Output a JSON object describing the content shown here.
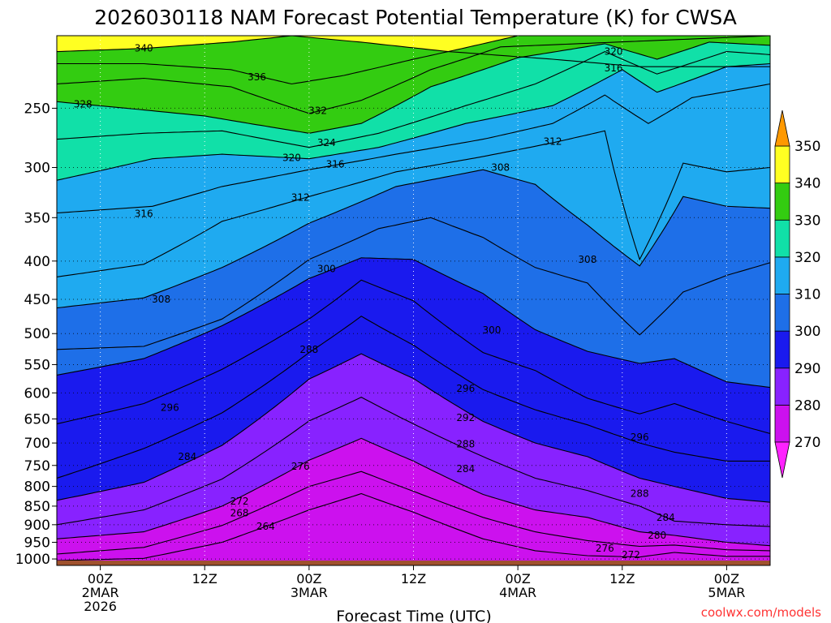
{
  "chart_data": {
    "type": "contour",
    "title": "2026030118 NAM Forecast Potential Temperature (K) for CWSA",
    "xlabel": "Forecast Time (UTC)",
    "ylabel": "",
    "y_scale": "log-pressure",
    "y_reversed": true,
    "ylim": [
      1020,
      200
    ],
    "yticks": [
      250,
      300,
      350,
      400,
      450,
      500,
      550,
      600,
      650,
      700,
      750,
      800,
      850,
      900,
      950,
      1000
    ],
    "x_unit": "forecast hour",
    "xlim": [
      -5,
      77
    ],
    "xticks": [
      {
        "hour": 0,
        "lines": [
          "00Z",
          "2MAR",
          "2026"
        ]
      },
      {
        "hour": 12,
        "lines": [
          "12Z"
        ]
      },
      {
        "hour": 24,
        "lines": [
          "00Z",
          "3MAR"
        ]
      },
      {
        "hour": 36,
        "lines": [
          "12Z"
        ]
      },
      {
        "hour": 48,
        "lines": [
          "00Z",
          "4MAR"
        ]
      },
      {
        "hour": 60,
        "lines": [
          "12Z"
        ]
      },
      {
        "hour": 72,
        "lines": [
          "00Z",
          "5MAR"
        ]
      }
    ],
    "grid": true,
    "fill_levels": [
      270,
      280,
      290,
      300,
      310,
      320,
      330,
      340,
      350
    ],
    "fill_colors": [
      "#ff22ff",
      "#cc11ee",
      "#8822ff",
      "#1a1aee",
      "#1e6fe8",
      "#1faaf0",
      "#11e0a8",
      "#33cc11",
      "#ffff22",
      "#ff9900"
    ],
    "colorbar_labels": [
      350,
      340,
      330,
      320,
      310,
      300,
      290,
      280,
      270
    ],
    "surface_pressure_hPa": 1005,
    "isentropes": [
      {
        "theta": 340,
        "points": [
          [
            -5,
            210
          ],
          [
            5,
            208
          ],
          [
            15,
            204
          ],
          [
            22,
            200
          ],
          [
            30,
            204
          ],
          [
            40,
            210
          ],
          [
            52,
            215
          ],
          [
            62,
            220
          ],
          [
            77,
            220
          ]
        ]
      },
      {
        "theta": 336,
        "points": [
          [
            -5,
            218
          ],
          [
            5,
            218
          ],
          [
            15,
            222
          ],
          [
            22,
            232
          ],
          [
            28,
            226
          ],
          [
            36,
            215
          ],
          [
            48,
            200
          ],
          [
            77,
            200
          ]
        ]
      },
      {
        "theta": 332,
        "points": [
          [
            -5,
            232
          ],
          [
            5,
            228
          ],
          [
            15,
            234
          ],
          [
            24,
            254
          ],
          [
            30,
            244
          ],
          [
            38,
            222
          ],
          [
            46,
            207
          ],
          [
            77,
            200
          ]
        ]
      },
      {
        "theta": 328,
        "points": [
          [
            -5,
            245
          ],
          [
            3,
            250
          ],
          [
            12,
            256
          ],
          [
            24,
            270
          ],
          [
            30,
            262
          ],
          [
            38,
            234
          ],
          [
            48,
            214
          ],
          [
            58,
            205
          ],
          [
            64,
            215
          ],
          [
            70,
            204
          ],
          [
            77,
            206
          ]
        ]
      },
      {
        "theta": 324,
        "points": [
          [
            -5,
            275
          ],
          [
            5,
            270
          ],
          [
            14,
            268
          ],
          [
            24,
            282
          ],
          [
            32,
            270
          ],
          [
            42,
            248
          ],
          [
            50,
            232
          ],
          [
            58,
            210
          ],
          [
            64,
            225
          ],
          [
            72,
            210
          ],
          [
            77,
            212
          ]
        ]
      },
      {
        "theta": 320,
        "points": [
          [
            -5,
            312
          ],
          [
            6,
            292
          ],
          [
            14,
            288
          ],
          [
            24,
            292
          ],
          [
            32,
            282
          ],
          [
            42,
            262
          ],
          [
            52,
            248
          ],
          [
            60,
            222
          ],
          [
            64,
            238
          ],
          [
            72,
            220
          ],
          [
            77,
            218
          ]
        ]
      },
      {
        "theta": 316,
        "points": [
          [
            -5,
            345
          ],
          [
            6,
            338
          ],
          [
            14,
            318
          ],
          [
            24,
            302
          ],
          [
            34,
            288
          ],
          [
            44,
            275
          ],
          [
            52,
            262
          ],
          [
            58,
            240
          ],
          [
            63,
            262
          ],
          [
            68,
            242
          ],
          [
            77,
            232
          ]
        ]
      },
      {
        "theta": 312,
        "points": [
          [
            -5,
            420
          ],
          [
            5,
            404
          ],
          [
            14,
            354
          ],
          [
            24,
            328
          ],
          [
            34,
            304
          ],
          [
            44,
            290
          ],
          [
            52,
            278
          ],
          [
            58,
            268
          ],
          [
            62,
            398
          ],
          [
            67,
            296
          ],
          [
            72,
            304
          ],
          [
            77,
            300
          ]
        ]
      },
      {
        "theta": 308,
        "points": [
          [
            -5,
            462
          ],
          [
            5,
            448
          ],
          [
            14,
            408
          ],
          [
            24,
            356
          ],
          [
            34,
            318
          ],
          [
            44,
            302
          ],
          [
            50,
            316
          ],
          [
            56,
            358
          ],
          [
            62,
            406
          ],
          [
            67,
            328
          ],
          [
            72,
            338
          ],
          [
            77,
            340
          ]
        ]
      },
      {
        "theta": 304,
        "points": [
          [
            -5,
            525
          ],
          [
            5,
            520
          ],
          [
            14,
            478
          ],
          [
            24,
            398
          ],
          [
            32,
            362
          ],
          [
            38,
            350
          ],
          [
            44,
            372
          ],
          [
            50,
            408
          ],
          [
            56,
            428
          ],
          [
            62,
            502
          ],
          [
            67,
            440
          ],
          [
            72,
            418
          ],
          [
            77,
            402
          ]
        ]
      },
      {
        "theta": 300,
        "points": [
          [
            -5,
            568
          ],
          [
            5,
            540
          ],
          [
            14,
            488
          ],
          [
            24,
            422
          ],
          [
            30,
            396
          ],
          [
            36,
            398
          ],
          [
            44,
            442
          ],
          [
            50,
            494
          ],
          [
            56,
            528
          ],
          [
            62,
            548
          ],
          [
            66,
            540
          ],
          [
            72,
            580
          ],
          [
            77,
            590
          ]
        ]
      },
      {
        "theta": 296,
        "points": [
          [
            -5,
            660
          ],
          [
            5,
            620
          ],
          [
            14,
            558
          ],
          [
            24,
            478
          ],
          [
            30,
            424
          ],
          [
            36,
            452
          ],
          [
            44,
            530
          ],
          [
            50,
            560
          ],
          [
            56,
            610
          ],
          [
            62,
            640
          ],
          [
            66,
            620
          ],
          [
            72,
            655
          ],
          [
            77,
            680
          ]
        ]
      },
      {
        "theta": 292,
        "points": [
          [
            -5,
            780
          ],
          [
            5,
            712
          ],
          [
            14,
            638
          ],
          [
            24,
            530
          ],
          [
            30,
            474
          ],
          [
            36,
            518
          ],
          [
            44,
            594
          ],
          [
            50,
            632
          ],
          [
            56,
            662
          ],
          [
            62,
            700
          ],
          [
            66,
            720
          ],
          [
            72,
            740
          ],
          [
            77,
            740
          ]
        ]
      },
      {
        "theta": 288,
        "points": [
          [
            -5,
            835
          ],
          [
            5,
            790
          ],
          [
            14,
            705
          ],
          [
            24,
            575
          ],
          [
            30,
            532
          ],
          [
            36,
            574
          ],
          [
            44,
            655
          ],
          [
            50,
            700
          ],
          [
            56,
            730
          ],
          [
            62,
            780
          ],
          [
            66,
            800
          ],
          [
            72,
            830
          ],
          [
            77,
            840
          ]
        ]
      },
      {
        "theta": 284,
        "points": [
          [
            -5,
            900
          ],
          [
            5,
            860
          ],
          [
            14,
            782
          ],
          [
            24,
            654
          ],
          [
            30,
            608
          ],
          [
            36,
            660
          ],
          [
            44,
            730
          ],
          [
            50,
            780
          ],
          [
            56,
            810
          ],
          [
            62,
            850
          ],
          [
            66,
            890
          ],
          [
            72,
            900
          ],
          [
            77,
            905
          ]
        ]
      },
      {
        "theta": 280,
        "points": [
          [
            -5,
            940
          ],
          [
            5,
            920
          ],
          [
            14,
            850
          ],
          [
            24,
            738
          ],
          [
            30,
            690
          ],
          [
            36,
            740
          ],
          [
            44,
            820
          ],
          [
            50,
            860
          ],
          [
            56,
            880
          ],
          [
            62,
            920
          ],
          [
            66,
            930
          ],
          [
            72,
            950
          ],
          [
            77,
            960
          ]
        ]
      },
      {
        "theta": 276,
        "points": [
          [
            -5,
            985
          ],
          [
            5,
            965
          ],
          [
            14,
            902
          ],
          [
            24,
            800
          ],
          [
            30,
            764
          ],
          [
            36,
            812
          ],
          [
            44,
            880
          ],
          [
            50,
            920
          ],
          [
            56,
            945
          ],
          [
            62,
            962
          ],
          [
            66,
            958
          ],
          [
            72,
            972
          ],
          [
            77,
            975
          ]
        ]
      },
      {
        "theta": 272,
        "points": [
          [
            -5,
            1005
          ],
          [
            5,
            998
          ],
          [
            14,
            950
          ],
          [
            24,
            860
          ],
          [
            30,
            818
          ],
          [
            36,
            866
          ],
          [
            44,
            940
          ],
          [
            50,
            975
          ],
          [
            56,
            990
          ],
          [
            62,
            994
          ],
          [
            66,
            980
          ],
          [
            72,
            992
          ],
          [
            77,
            992
          ]
        ]
      }
    ],
    "contour_labels": [
      {
        "text": "340",
        "hour": 5,
        "p": 208
      },
      {
        "text": "336",
        "hour": 18,
        "p": 227
      },
      {
        "text": "332",
        "hour": 25,
        "p": 252
      },
      {
        "text": "328",
        "hour": -2,
        "p": 247
      },
      {
        "text": "324",
        "hour": 26,
        "p": 278
      },
      {
        "text": "320",
        "hour": 22,
        "p": 291
      },
      {
        "text": "316",
        "hour": 27,
        "p": 297
      },
      {
        "text": "312",
        "hour": 23,
        "p": 329
      },
      {
        "text": "316",
        "hour": 5,
        "p": 346
      },
      {
        "text": "308",
        "hour": 46,
        "p": 300
      },
      {
        "text": "312",
        "hour": 52,
        "p": 277
      },
      {
        "text": "320",
        "hour": 59,
        "p": 210
      },
      {
        "text": "316",
        "hour": 59,
        "p": 221
      },
      {
        "text": "308",
        "hour": 7,
        "p": 450
      },
      {
        "text": "308",
        "hour": 56,
        "p": 398
      },
      {
        "text": "300",
        "hour": 26,
        "p": 410
      },
      {
        "text": "300",
        "hour": 45,
        "p": 495
      },
      {
        "text": "288",
        "hour": 24,
        "p": 525
      },
      {
        "text": "296",
        "hour": 42,
        "p": 592
      },
      {
        "text": "296",
        "hour": 8,
        "p": 628
      },
      {
        "text": "292",
        "hour": 42,
        "p": 648
      },
      {
        "text": "296",
        "hour": 62,
        "p": 688
      },
      {
        "text": "288",
        "hour": 42,
        "p": 702
      },
      {
        "text": "284",
        "hour": 10,
        "p": 730
      },
      {
        "text": "276",
        "hour": 23,
        "p": 752
      },
      {
        "text": "284",
        "hour": 42,
        "p": 758
      },
      {
        "text": "272",
        "hour": 16,
        "p": 838
      },
      {
        "text": "288",
        "hour": 62,
        "p": 818
      },
      {
        "text": "268",
        "hour": 16,
        "p": 868
      },
      {
        "text": "284",
        "hour": 65,
        "p": 880
      },
      {
        "text": "264",
        "hour": 19,
        "p": 905
      },
      {
        "text": "280",
        "hour": 64,
        "p": 930
      },
      {
        "text": "276",
        "hour": 58,
        "p": 968
      },
      {
        "text": "272",
        "hour": 61,
        "p": 987
      }
    ]
  },
  "credit": "coolwx.com/models"
}
